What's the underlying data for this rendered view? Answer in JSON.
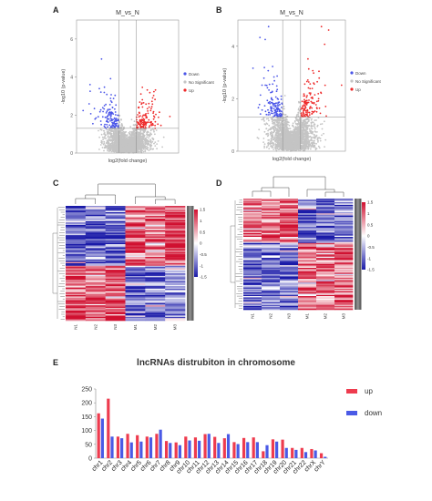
{
  "panel_labels": [
    "A",
    "B",
    "C",
    "D",
    "E"
  ],
  "colors": {
    "down": "#4a55e8",
    "up": "#ee2a2a",
    "ns": "#c4c4c4",
    "hm_low": "#1a1aa8",
    "hm_mid": "#ffffff",
    "hm_high": "#d01030"
  },
  "chart_data": [
    {
      "type": "scatter",
      "panel": "A",
      "title": "M_vs_N",
      "xlabel": "log2(fold change)",
      "ylabel": "-log10 (p-value)",
      "xlim": [
        -6,
        6
      ],
      "ylim": [
        0,
        7
      ],
      "y_ticks": [
        0,
        2,
        4,
        6
      ],
      "thresholds": {
        "x": [
          -1,
          1
        ],
        "y": 1.3
      },
      "legend": [
        {
          "label": "Down",
          "color": "#4a55e8"
        },
        {
          "label": "No Significant",
          "color": "#c4c4c4"
        },
        {
          "label": "Up",
          "color": "#ee2a2a"
        }
      ],
      "legend_position": "right"
    },
    {
      "type": "scatter",
      "panel": "B",
      "title": "M_vs_N",
      "xlabel": "log2(fold change)",
      "ylabel": "-log10 (p-value)",
      "xlim": [
        -6,
        6
      ],
      "ylim": [
        0,
        5
      ],
      "y_ticks": [
        0,
        2,
        4
      ],
      "thresholds": {
        "x": [
          -1,
          1
        ],
        "y": 1.3
      },
      "legend": [
        {
          "label": "Down",
          "color": "#4a55e8"
        },
        {
          "label": "No Significant",
          "color": "#c4c4c4"
        },
        {
          "label": "Up",
          "color": "#ee2a2a"
        }
      ],
      "legend_position": "right"
    },
    {
      "type": "heatmap",
      "panel": "C",
      "columns": [
        "N1",
        "N2",
        "N3",
        "M1",
        "M2",
        "M3"
      ],
      "color_scale_ticks": [
        1.5,
        1,
        0.5,
        0,
        -0.5,
        -1,
        -1.5
      ],
      "color_range": [
        -1.5,
        1.5
      ],
      "blocks": [
        {
          "fraction": 0.52,
          "values": [
            -1.0,
            -0.9,
            -1.1,
            1.0,
            0.9,
            1.1
          ]
        },
        {
          "fraction": 0.48,
          "values": [
            1.0,
            0.9,
            1.0,
            -1.0,
            -0.9,
            -0.8
          ]
        }
      ]
    },
    {
      "type": "heatmap",
      "panel": "D",
      "columns": [
        "N1",
        "N2",
        "N3",
        "M1",
        "M2",
        "M3"
      ],
      "color_scale_ticks": [
        1.5,
        1,
        0.5,
        0,
        -0.5,
        -1,
        -1.5
      ],
      "color_range": [
        -1.5,
        1.5
      ],
      "blocks": [
        {
          "fraction": 0.4,
          "values": [
            0.8,
            0.9,
            1.0,
            -1.0,
            -0.8,
            -0.7
          ]
        },
        {
          "fraction": 0.6,
          "values": [
            -0.9,
            -1.0,
            -0.9,
            0.9,
            0.8,
            1.0
          ]
        }
      ]
    },
    {
      "type": "bar",
      "panel": "E",
      "title": "lncRNAs distrubiton in chromosome",
      "categories": [
        "chr1",
        "chr2",
        "chr3",
        "chr4",
        "chr5",
        "chr6",
        "chr7",
        "chr8",
        "chr9",
        "chr10",
        "chr11",
        "chr12",
        "chr13",
        "chr14",
        "chr15",
        "chr16",
        "chr17",
        "chr18",
        "chr19",
        "chr20",
        "chr21",
        "chr22",
        "chrX",
        "chrY"
      ],
      "series": [
        {
          "name": "up",
          "color": "#ee3b4e",
          "values": [
            162,
            215,
            78,
            88,
            83,
            78,
            88,
            62,
            57,
            78,
            75,
            87,
            77,
            72,
            58,
            73,
            75,
            25,
            68,
            67,
            37,
            37,
            33,
            18
          ]
        },
        {
          "name": "down",
          "color": "#4a5ae6",
          "values": [
            143,
            78,
            72,
            57,
            60,
            75,
            103,
            55,
            47,
            64,
            63,
            88,
            55,
            87,
            51,
            58,
            58,
            47,
            60,
            37,
            30,
            22,
            28,
            5
          ]
        }
      ],
      "ylim": [
        0,
        250
      ],
      "y_ticks": [
        0,
        50,
        100,
        150,
        200,
        250
      ],
      "legend_position": "right"
    }
  ]
}
